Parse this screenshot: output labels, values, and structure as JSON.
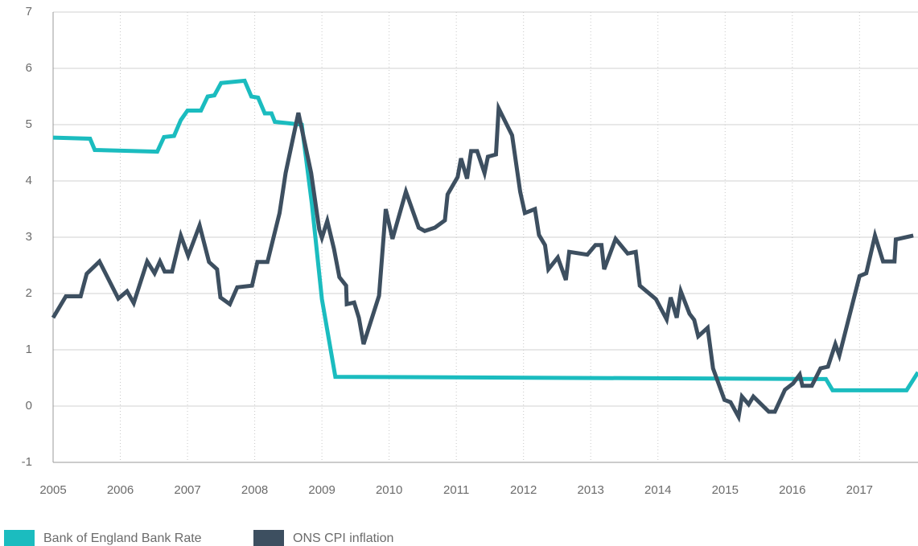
{
  "chart_data": {
    "type": "line",
    "xlim": [
      2005,
      2017.87
    ],
    "xticks": [
      2005,
      2006,
      2007,
      2008,
      2009,
      2010,
      2011,
      2012,
      2013,
      2014,
      2015,
      2016,
      2017
    ],
    "ylim": [
      -1,
      7
    ],
    "yticks": [
      -1,
      0,
      1,
      2,
      3,
      4,
      5,
      6,
      7
    ],
    "grid": true,
    "legend": "bottom-left",
    "series": [
      {
        "name": "Bank of England Bank Rate",
        "color": "#1bbcbf",
        "x": [
          2005.0,
          2005.55,
          2005.62,
          2006.55,
          2006.65,
          2006.8,
          2006.9,
          2007.0,
          2007.2,
          2007.3,
          2007.4,
          2007.5,
          2007.85,
          2007.95,
          2008.05,
          2008.15,
          2008.25,
          2008.3,
          2008.7,
          2008.85,
          2009.0,
          2009.2,
          2016.5,
          2016.6,
          2017.7,
          2017.87
        ],
        "values": [
          4.77,
          4.75,
          4.55,
          4.52,
          4.78,
          4.8,
          5.08,
          5.25,
          5.25,
          5.5,
          5.52,
          5.74,
          5.78,
          5.5,
          5.48,
          5.2,
          5.2,
          5.05,
          5.0,
          3.6,
          1.9,
          0.52,
          0.48,
          0.28,
          0.28,
          0.6
        ]
      },
      {
        "name": "ONS CPI inflation",
        "color": "#3d4f60",
        "x": [
          2005.0,
          2005.19,
          2005.41,
          2005.5,
          2005.69,
          2005.97,
          2006.1,
          2006.2,
          2006.4,
          2006.51,
          2006.59,
          2006.66,
          2006.77,
          2006.9,
          2007.01,
          2007.18,
          2007.32,
          2007.44,
          2007.49,
          2007.63,
          2007.74,
          2007.96,
          2008.04,
          2008.19,
          2008.37,
          2008.46,
          2008.65,
          2008.84,
          2008.96,
          2009.0,
          2009.08,
          2009.18,
          2009.26,
          2009.36,
          2009.37,
          2009.48,
          2009.55,
          2009.62,
          2009.85,
          2009.95,
          2010.05,
          2010.25,
          2010.44,
          2010.53,
          2010.68,
          2010.83,
          2010.87,
          2011.02,
          2011.07,
          2011.16,
          2011.22,
          2011.31,
          2011.42,
          2011.47,
          2011.59,
          2011.63,
          2011.83,
          2011.95,
          2012.02,
          2012.17,
          2012.23,
          2012.32,
          2012.37,
          2012.51,
          2012.63,
          2012.68,
          2012.95,
          2013.07,
          2013.16,
          2013.2,
          2013.37,
          2013.55,
          2013.67,
          2013.73,
          2013.97,
          2014.13,
          2014.19,
          2014.28,
          2014.34,
          2014.47,
          2014.54,
          2014.6,
          2014.74,
          2014.82,
          2014.99,
          2015.08,
          2015.2,
          2015.25,
          2015.35,
          2015.42,
          2015.65,
          2015.74,
          2015.89,
          2016.01,
          2016.11,
          2016.15,
          2016.29,
          2016.42,
          2016.53,
          2016.64,
          2016.7,
          2017.0,
          2017.1,
          2017.23,
          2017.35,
          2017.52,
          2017.54,
          2017.8
        ],
        "values": [
          1.57,
          1.95,
          1.95,
          2.35,
          2.57,
          1.91,
          2.04,
          1.83,
          2.57,
          2.36,
          2.57,
          2.39,
          2.39,
          3.03,
          2.67,
          3.21,
          2.56,
          2.43,
          1.93,
          1.81,
          2.11,
          2.14,
          2.56,
          2.56,
          3.43,
          4.14,
          5.21,
          4.14,
          3.14,
          2.99,
          3.29,
          2.79,
          2.29,
          2.14,
          1.81,
          1.84,
          1.57,
          1.1,
          1.96,
          3.5,
          2.97,
          3.81,
          3.17,
          3.11,
          3.17,
          3.3,
          3.76,
          4.07,
          4.4,
          4.04,
          4.53,
          4.53,
          4.14,
          4.43,
          4.47,
          5.29,
          4.81,
          3.81,
          3.43,
          3.5,
          3.04,
          2.86,
          2.43,
          2.64,
          2.24,
          2.74,
          2.69,
          2.86,
          2.86,
          2.43,
          2.97,
          2.71,
          2.74,
          2.14,
          1.9,
          1.54,
          1.93,
          1.57,
          2.04,
          1.64,
          1.53,
          1.24,
          1.39,
          0.67,
          0.11,
          0.07,
          -0.19,
          0.17,
          0.03,
          0.17,
          -0.1,
          -0.1,
          0.29,
          0.4,
          0.56,
          0.36,
          0.36,
          0.67,
          0.7,
          1.1,
          0.9,
          2.31,
          2.36,
          3.03,
          2.57,
          2.57,
          2.96,
          3.03
        ]
      }
    ]
  }
}
